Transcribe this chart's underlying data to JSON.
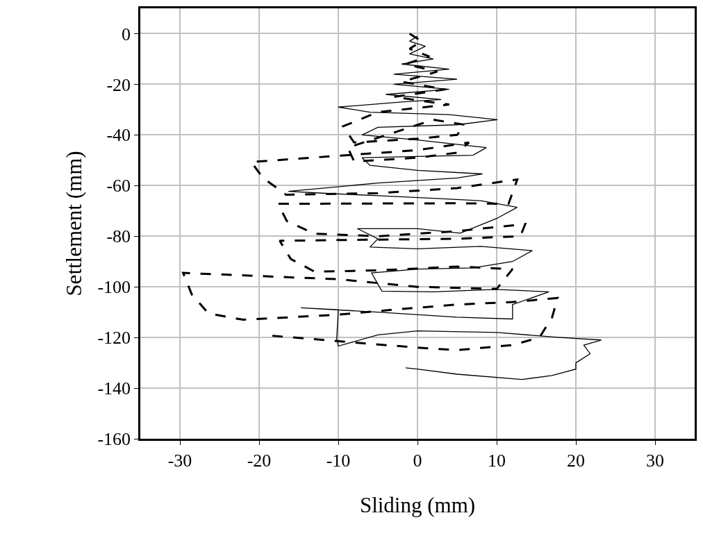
{
  "chart_data": {
    "type": "line",
    "xlabel": "Sliding (mm)",
    "ylabel": "Settlement (mm)",
    "xlim": [
      -35,
      35
    ],
    "xticks": [
      -30,
      -20,
      -10,
      0,
      10,
      20,
      30
    ],
    "ylim": [
      -160,
      10
    ],
    "yticks": [
      0,
      -20,
      -40,
      -60,
      -80,
      -100,
      -120,
      -140,
      -160
    ],
    "grid": true,
    "marker": "none",
    "series": [
      {
        "color": "#000000",
        "line_style": "solid",
        "x": [
          0,
          -1,
          1,
          -1,
          2,
          -2,
          4,
          -3,
          5,
          -3,
          4,
          -4,
          3,
          -2,
          -10,
          -6,
          4,
          10.1,
          5,
          -5,
          -7,
          0,
          8.7,
          7,
          0,
          -7,
          -6,
          0,
          8.2,
          5,
          -5,
          -16.3,
          -12,
          -5,
          2,
          8,
          12.6,
          10,
          5.4,
          0,
          -7.6,
          -5,
          -6,
          0,
          8,
          14.5,
          12,
          7,
          0,
          -5.8,
          -4.5,
          2,
          10,
          16.6,
          12,
          12,
          5,
          -5,
          -14.7,
          -10,
          -10.2,
          -10,
          -5,
          0,
          10,
          18,
          23.2,
          21,
          21.8,
          20,
          20,
          17,
          13.2,
          5,
          0,
          -1.5
        ],
        "values": [
          -1,
          -3,
          -5,
          -8,
          -10,
          -12,
          -14,
          -16,
          -18,
          -20,
          -22,
          -24,
          -26,
          -27,
          -29,
          -31,
          -32,
          -34,
          -36,
          -37,
          -40,
          -42,
          -45,
          -48,
          -48.5,
          -49,
          -52,
          -54,
          -55.4,
          -57,
          -59,
          -62.3,
          -63,
          -64,
          -65,
          -66,
          -68.6,
          -73,
          -78.8,
          -77,
          -77,
          -81,
          -84.3,
          -85,
          -84,
          -85.7,
          -90,
          -92.5,
          -93,
          -94.5,
          -101.7,
          -102,
          -101,
          -102,
          -107,
          -112.7,
          -112,
          -110,
          -108.3,
          -109,
          -120.6,
          -123.4,
          -119,
          -117.4,
          -118,
          -120,
          -121,
          -123,
          -126.4,
          -130,
          -132.5,
          -135,
          -136.6,
          -134.5,
          -132.5,
          -132
        ]
      },
      {
        "color": "#000000",
        "line_style": "dashed",
        "x": [
          -1,
          0.5,
          -1,
          1.5,
          -1.5,
          2.5,
          -2,
          3.5,
          -3,
          4,
          -5,
          -9.4,
          -8,
          0,
          5,
          6,
          2,
          -8.8,
          -8,
          0,
          5,
          6.5,
          0,
          -21,
          -19.5,
          -16.6,
          -5,
          5,
          12.6,
          11.5,
          5,
          -17.6,
          -16.5,
          -13,
          -5,
          5,
          13.6,
          13,
          5,
          -17.4,
          -16,
          -13,
          -5,
          5,
          12,
          10,
          0,
          -10,
          -29.6,
          -28.5,
          -26.4,
          -22,
          -10,
          -3,
          5,
          12,
          17.7,
          17,
          15.4,
          12,
          5,
          0,
          -8,
          -18.4
        ],
        "values": [
          0,
          -3,
          -6,
          -9,
          -12,
          -15,
          -19,
          -22,
          -25,
          -28,
          -31,
          -36.6,
          -43,
          -41.5,
          -40,
          -36,
          -34,
          -45,
          -50.5,
          -49,
          -47,
          -43,
          -46,
          -50.7,
          -57,
          -63.6,
          -63,
          -61,
          -57.6,
          -67.2,
          -67,
          -67.2,
          -74,
          -79,
          -80,
          -78,
          -75.2,
          -80,
          -81,
          -81.8,
          -89,
          -94,
          -93.5,
          -92,
          -93,
          -100.8,
          -100,
          -97,
          -94.5,
          -103,
          -110.5,
          -113,
          -111,
          -109,
          -107,
          -106,
          -104.4,
          -112,
          -120,
          -123,
          -125,
          -124,
          -122,
          -119.3
        ]
      }
    ]
  }
}
